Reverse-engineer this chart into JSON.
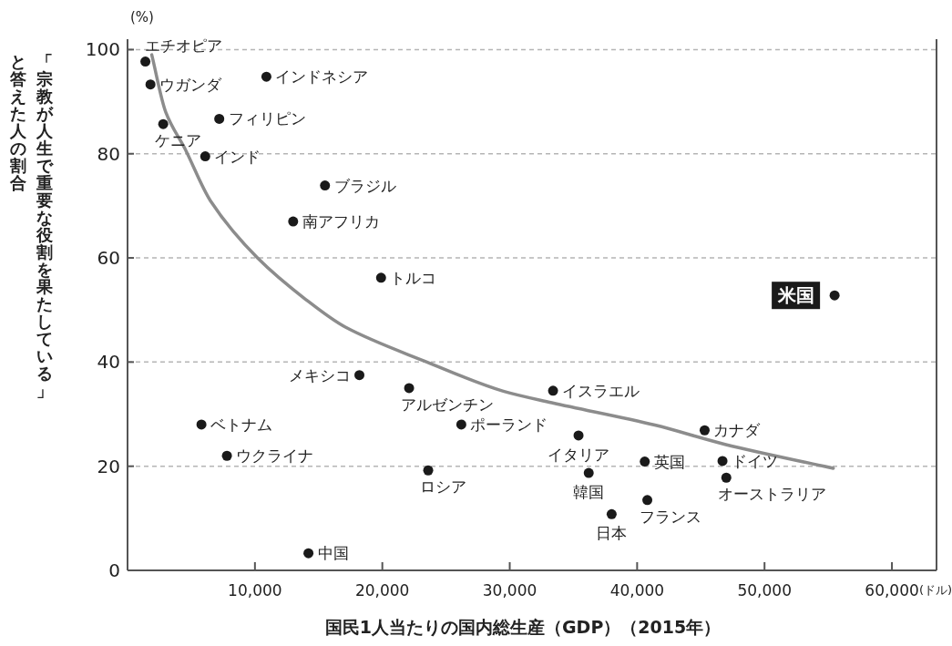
{
  "chart_data": {
    "type": "scatter",
    "xlabel": "国民1人当たりの国内総生産（GDP）（2015年）",
    "ylabel": "「宗教が人生で重要な役割を果たしている」と答えた人の割合",
    "annotations": [
      "(%)",
      "(ドル)"
    ],
    "xlim": [
      0,
      63500
    ],
    "ylim": [
      0,
      102
    ],
    "xticks": [
      {
        "value": 10000,
        "label": "10,000"
      },
      {
        "value": 20000,
        "label": "20,000"
      },
      {
        "value": 30000,
        "label": "30,000"
      },
      {
        "value": 40000,
        "label": "40,000"
      },
      {
        "value": 50000,
        "label": "50,000"
      },
      {
        "value": 60000,
        "label": "60,000"
      }
    ],
    "yticks": [
      0,
      20,
      40,
      60,
      80,
      100
    ],
    "grid": "y",
    "marker": "circle",
    "series": [
      {
        "name": "エチオピア",
        "color": "#1a1a1a",
        "x": [
          1400
        ],
        "values": [
          97.7
        ]
      },
      {
        "name": "ウガンダ",
        "color": "#1a1a1a",
        "x": [
          1800
        ],
        "values": [
          93.3
        ]
      },
      {
        "name": "ケニア",
        "color": "#1a1a1a",
        "x": [
          2800
        ],
        "values": [
          85.7
        ]
      },
      {
        "name": "インド",
        "color": "#1a1a1a",
        "x": [
          6100
        ],
        "values": [
          79.5
        ]
      },
      {
        "name": "フィリピン",
        "color": "#1a1a1a",
        "x": [
          7200
        ],
        "values": [
          86.7
        ]
      },
      {
        "name": "インドネシア",
        "color": "#1a1a1a",
        "x": [
          10900
        ],
        "values": [
          94.8
        ]
      },
      {
        "name": "ブラジル",
        "color": "#1a1a1a",
        "x": [
          15500
        ],
        "values": [
          73.9
        ]
      },
      {
        "name": "南アフリカ",
        "color": "#1a1a1a",
        "x": [
          13000
        ],
        "values": [
          67
        ]
      },
      {
        "name": "トルコ",
        "color": "#1a1a1a",
        "x": [
          19900
        ],
        "values": [
          56.2
        ]
      },
      {
        "name": "メキシコ",
        "color": "#1a1a1a",
        "x": [
          18200
        ],
        "values": [
          37.5
        ]
      },
      {
        "name": "アルゼンチン",
        "color": "#1a1a1a",
        "x": [
          22100
        ],
        "values": [
          35
        ]
      },
      {
        "name": "ポーランド",
        "color": "#1a1a1a",
        "x": [
          26200
        ],
        "values": [
          28
        ]
      },
      {
        "name": "ベトナム",
        "color": "#1a1a1a",
        "x": [
          5800
        ],
        "values": [
          28
        ]
      },
      {
        "name": "ウクライナ",
        "color": "#1a1a1a",
        "x": [
          7800
        ],
        "values": [
          22
        ]
      },
      {
        "name": "ロシア",
        "color": "#1a1a1a",
        "x": [
          23600
        ],
        "values": [
          19.2
        ]
      },
      {
        "name": "中国",
        "color": "#1a1a1a",
        "x": [
          14200
        ],
        "values": [
          3.3
        ]
      },
      {
        "name": "イスラエル",
        "color": "#1a1a1a",
        "x": [
          33400
        ],
        "values": [
          34.5
        ]
      },
      {
        "name": "イタリア",
        "color": "#1a1a1a",
        "x": [
          35400
        ],
        "values": [
          25.9
        ]
      },
      {
        "name": "韓国",
        "color": "#1a1a1a",
        "x": [
          36200
        ],
        "values": [
          18.7
        ]
      },
      {
        "name": "日本",
        "color": "#1a1a1a",
        "x": [
          38000
        ],
        "values": [
          10.8
        ]
      },
      {
        "name": "英国",
        "color": "#1a1a1a",
        "x": [
          40600
        ],
        "values": [
          20.9
        ]
      },
      {
        "name": "フランス",
        "color": "#1a1a1a",
        "x": [
          40800
        ],
        "values": [
          13.5
        ]
      },
      {
        "name": "カナダ",
        "color": "#1a1a1a",
        "x": [
          45300
        ],
        "values": [
          26.9
        ]
      },
      {
        "name": "ドイツ",
        "color": "#1a1a1a",
        "x": [
          46700
        ],
        "values": [
          21
        ]
      },
      {
        "name": "オーストラリア",
        "color": "#1a1a1a",
        "x": [
          47000
        ],
        "values": [
          17.8
        ]
      },
      {
        "name": "米国",
        "color": "#1a1a1a",
        "x": [
          55500
        ],
        "values": [
          52.8
        ]
      },
      {
        "type": "line",
        "marker": "none",
        "color": "#8c8c8c",
        "x": [
          1900,
          3000,
          4500,
          6500,
          10200,
          14000,
          17100,
          23500,
          29500,
          33300,
          41400,
          46900,
          55400
        ],
        "values": [
          99,
          88,
          81,
          71,
          60,
          52,
          46.7,
          40,
          34.4,
          32.2,
          27.9,
          24.2,
          19.6
        ]
      }
    ]
  }
}
